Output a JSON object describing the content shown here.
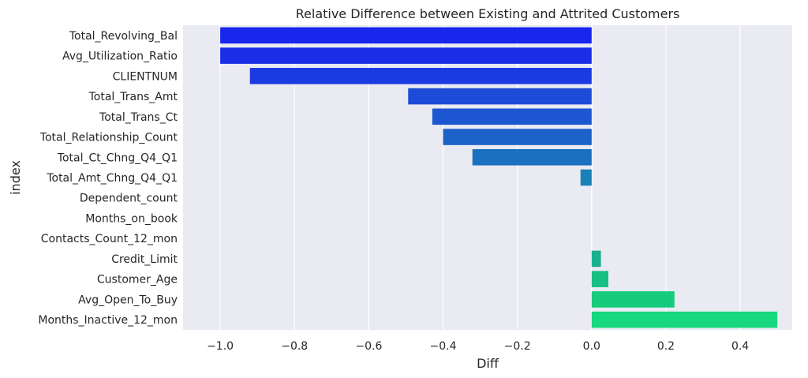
{
  "chart_data": {
    "type": "bar",
    "orientation": "horizontal",
    "title": "Relative Difference between Existing and Attrited Customers",
    "xlabel": "Diff",
    "ylabel": "index",
    "xlim": [
      -1.1,
      0.54
    ],
    "xticks": [
      -1.0,
      -0.8,
      -0.6,
      -0.4,
      -0.2,
      0.0,
      0.2,
      0.4
    ],
    "xtick_labels": [
      "−1.0",
      "−0.8",
      "−0.6",
      "−0.4",
      "−0.2",
      "0.0",
      "0.2",
      "0.4"
    ],
    "grid": true,
    "categories": [
      "Total_Revolving_Bal",
      "Avg_Utilization_Ratio",
      "CLIENTNUM",
      "Total_Trans_Amt",
      "Total_Trans_Ct",
      "Total_Relationship_Count",
      "Total_Ct_Chng_Q4_Q1",
      "Total_Amt_Chng_Q4_Q1",
      "Dependent_count",
      "Months_on_book",
      "Contacts_Count_12_mon",
      "Credit_Limit",
      "Customer_Age",
      "Avg_Open_To_Buy",
      "Months_Inactive_12_mon"
    ],
    "values": [
      -1.0,
      -1.0,
      -0.92,
      -0.494,
      -0.429,
      -0.4,
      -0.321,
      -0.03,
      0.0,
      0.0,
      0.0,
      0.025,
      0.045,
      0.223,
      0.5
    ],
    "colors": [
      "#1926ec",
      "#1a2fe7",
      "#1b3ae1",
      "#1c4bd7",
      "#1c56d0",
      "#1c62c8",
      "#1b70bf",
      "#1a80b5",
      "#1a8bac",
      "#1a97a4",
      "#19a39a",
      "#18b08f",
      "#17bf84",
      "#16cc7c",
      "#17d87e"
    ],
    "background": "#eaeaf2",
    "grid_color": "#ffffff"
  }
}
